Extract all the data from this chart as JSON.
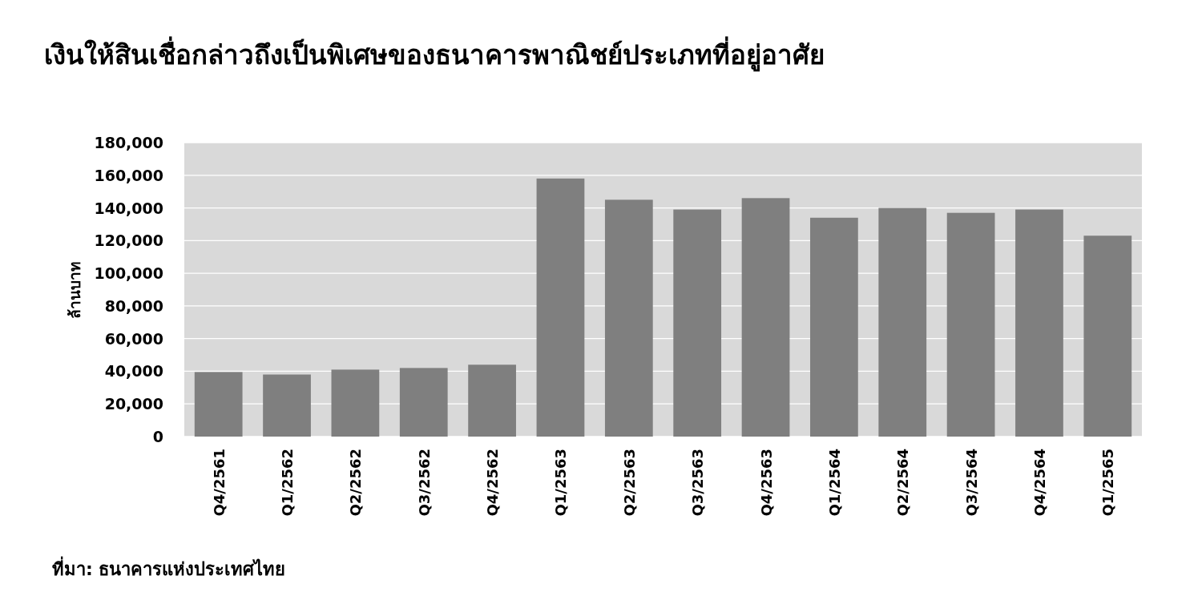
{
  "chart_data": {
    "type": "bar",
    "title": "เงินให้สินเชื่อกล่าวถึงเป็นพิเศษของธนาคารพาณิชย์ประเภทที่อยู่อาศัย",
    "ylabel": "ล้านบาท",
    "categories": [
      "Q4/2561",
      "Q1/2562",
      "Q2/2562",
      "Q3/2562",
      "Q4/2562",
      "Q1/2563",
      "Q2/2563",
      "Q3/2563",
      "Q4/2563",
      "Q1/2564",
      "Q2/2564",
      "Q3/2564",
      "Q4/2564",
      "Q1/2565"
    ],
    "values": [
      39500,
      38000,
      41000,
      42000,
      44000,
      158000,
      145000,
      139000,
      146000,
      134000,
      140000,
      137000,
      139000,
      123000
    ],
    "color": "#7f7f7f",
    "ylim": [
      0,
      180000
    ],
    "yticks": [
      {
        "value": 0,
        "label": "0"
      },
      {
        "value": 20000,
        "label": "20,000"
      },
      {
        "value": 40000,
        "label": "40,000"
      },
      {
        "value": 60000,
        "label": "60,000"
      },
      {
        "value": 80000,
        "label": "80,000"
      },
      {
        "value": 100000,
        "label": "100,000"
      },
      {
        "value": 120000,
        "label": "120,000"
      },
      {
        "value": 140000,
        "label": "140,000"
      },
      {
        "value": 160000,
        "label": "160,000"
      },
      {
        "value": 180000,
        "label": "180,000"
      }
    ],
    "grid": "y",
    "annotations": [
      "ที่มา: ธนาคารแห่งประเทศไทย"
    ]
  }
}
